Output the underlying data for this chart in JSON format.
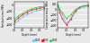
{
  "left": {
    "xlabel": "Depth (mm)",
    "ylabel": "Residual stress (MPa)",
    "xlim": [
      0,
      0.35
    ],
    "ylim": [
      -700,
      100
    ],
    "yticks": [
      -600,
      -400,
      -200,
      0
    ],
    "xticks": [
      0.0,
      0.1,
      0.2,
      0.3
    ],
    "series": [
      {
        "label": "1100",
        "color": "#55ccff",
        "marker": "o",
        "x": [
          0.0,
          0.05,
          0.1,
          0.15,
          0.2,
          0.25,
          0.3,
          0.35
        ],
        "y": [
          -600,
          -480,
          -380,
          -300,
          -230,
          -180,
          -150,
          -140
        ]
      },
      {
        "label": "1300",
        "color": "#ff2222",
        "marker": "s",
        "x": [
          0.0,
          0.05,
          0.1,
          0.15,
          0.2,
          0.25,
          0.3,
          0.35
        ],
        "y": [
          -520,
          -400,
          -300,
          -220,
          -160,
          -120,
          -90,
          -80
        ]
      },
      {
        "label": "1500",
        "color": "#33bb33",
        "marker": "^",
        "x": [
          0.0,
          0.05,
          0.1,
          0.15,
          0.2,
          0.25,
          0.3,
          0.35
        ],
        "y": [
          -450,
          -340,
          -250,
          -180,
          -120,
          -80,
          -50,
          -40
        ]
      }
    ]
  },
  "right": {
    "xlabel": "Depth (mm)",
    "ylabel": "Compressive stress (MPa)",
    "xlim": [
      0,
      0.35
    ],
    "ylim": [
      -700,
      300
    ],
    "yticks": [
      -600,
      -400,
      -200,
      0,
      200
    ],
    "xticks": [
      0.0,
      0.1,
      0.2,
      0.3
    ],
    "series": [
      {
        "label": "1100",
        "color": "#55ccff",
        "marker": "o",
        "x": [
          0.0,
          0.02,
          0.05,
          0.1,
          0.15,
          0.2,
          0.25,
          0.3,
          0.35
        ],
        "y": [
          200,
          50,
          -200,
          -530,
          -400,
          -100,
          50,
          100,
          130
        ]
      },
      {
        "label": "1300",
        "color": "#ff2222",
        "marker": "s",
        "x": [
          0.0,
          0.02,
          0.05,
          0.1,
          0.15,
          0.2,
          0.25,
          0.3,
          0.35
        ],
        "y": [
          180,
          -100,
          -350,
          -600,
          -350,
          -50,
          80,
          150,
          170
        ]
      },
      {
        "label": "1500",
        "color": "#33bb33",
        "marker": "^",
        "x": [
          0.0,
          0.02,
          0.05,
          0.1,
          0.15,
          0.2,
          0.25,
          0.3,
          0.35
        ],
        "y": [
          150,
          0,
          -100,
          -350,
          -200,
          0,
          100,
          150,
          160
        ]
      }
    ]
  },
  "legend_labels": [
    "1100",
    "1300",
    "1500"
  ],
  "legend_colors": [
    "#55ccff",
    "#ff2222",
    "#33bb33"
  ],
  "legend_markers": [
    "o",
    "s",
    "^"
  ],
  "bg_color": "#e8e8e8",
  "grid_color": "#ffffff",
  "plot_bg": "#e8e8e8"
}
